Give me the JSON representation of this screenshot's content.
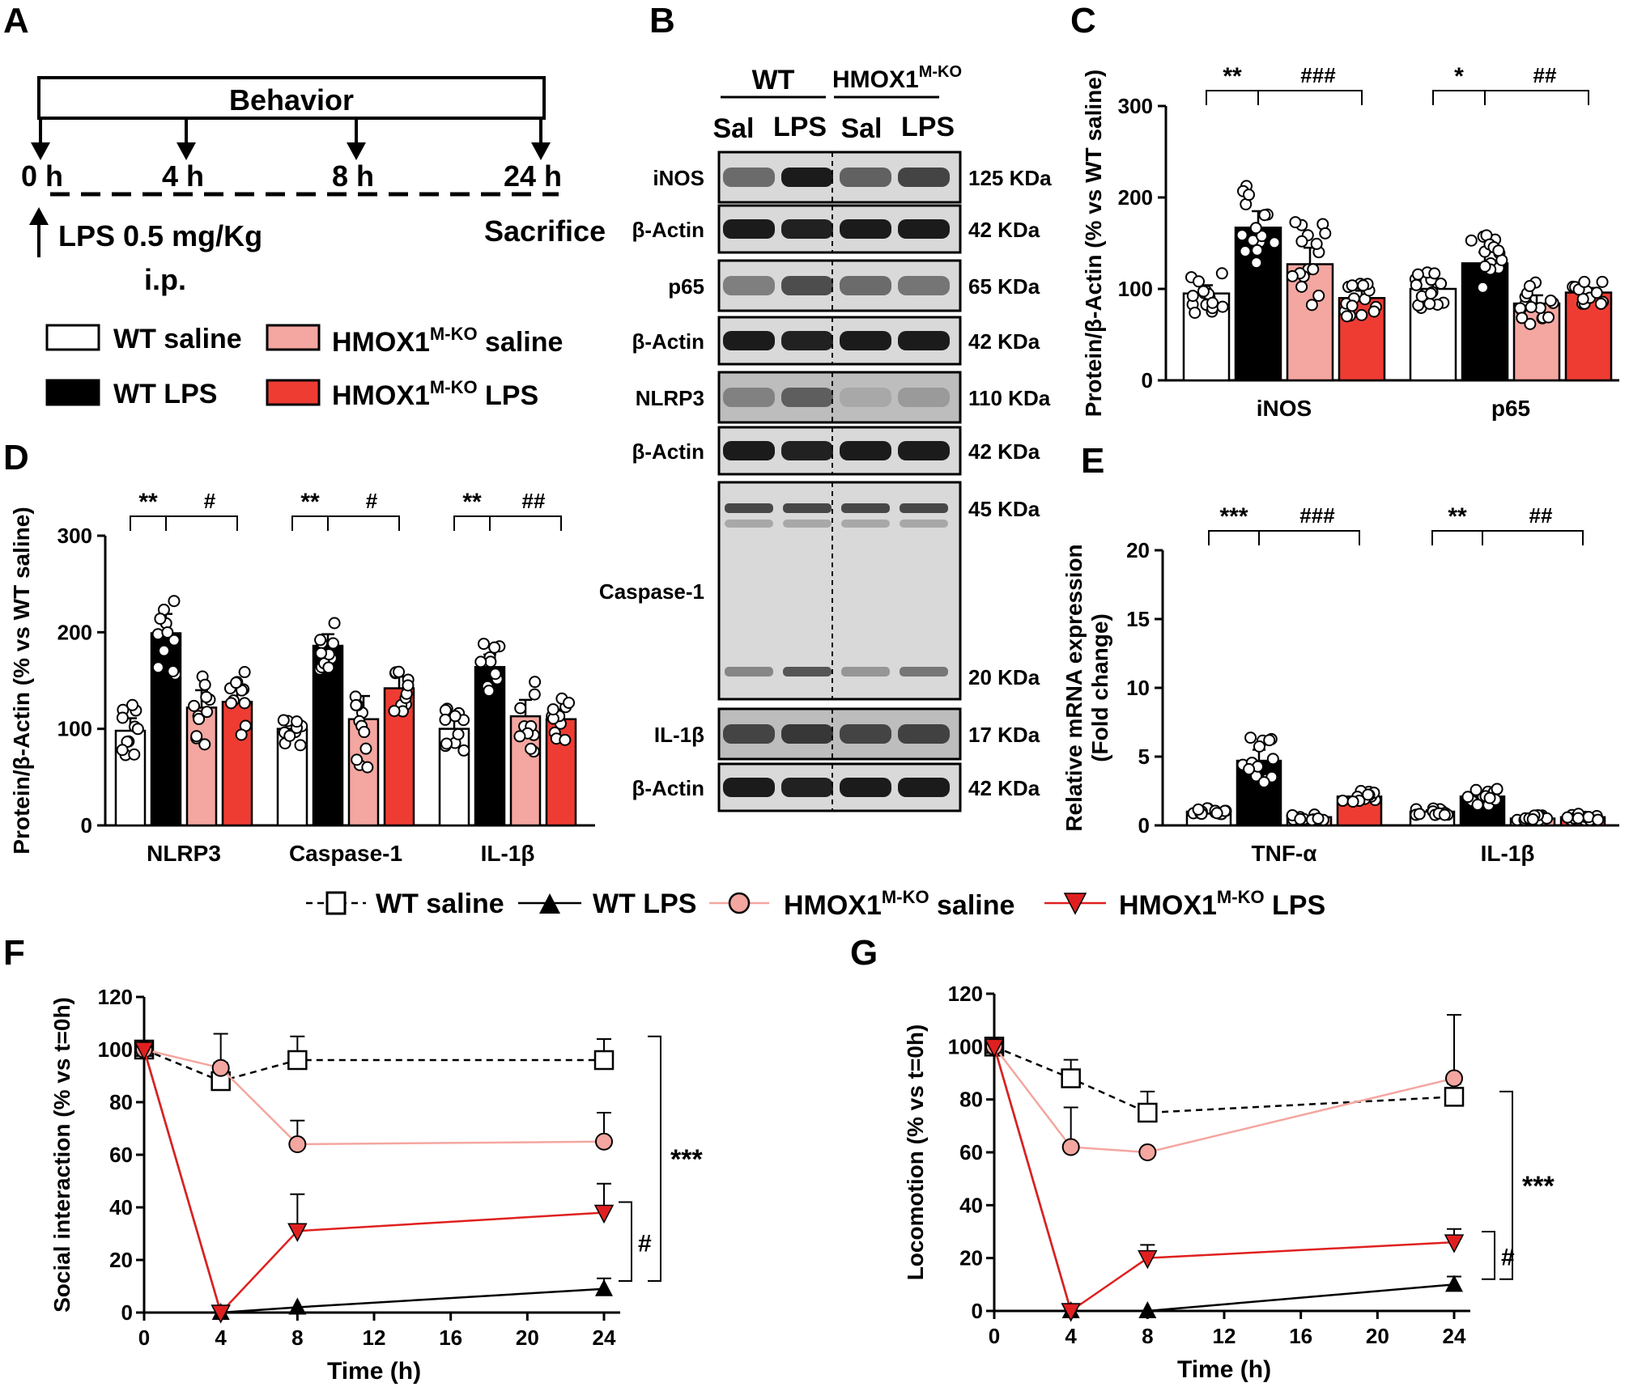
{
  "panels": {
    "A": "A",
    "B": "B",
    "C": "C",
    "D": "D",
    "E": "E",
    "F": "F",
    "G": "G"
  },
  "panel_a": {
    "behavior_label": "Behavior",
    "times": [
      "0 h",
      "4 h",
      "8 h",
      "24 h"
    ],
    "lps_label": "LPS 0.5 mg/Kg",
    "ip_label": "i.p.",
    "sacrifice_label": "Sacrifice"
  },
  "bar_legend": [
    {
      "label": "WT saline",
      "sup": "",
      "suffix": "",
      "fill": "#ffffff"
    },
    {
      "label": "HMOX1",
      "sup": "M-KO",
      "suffix": " saline",
      "fill": "#f4a6a0"
    },
    {
      "label": "WT LPS",
      "sup": "",
      "suffix": "",
      "fill": "#000000"
    },
    {
      "label": "HMOX1",
      "sup": "M-KO",
      "suffix": " LPS",
      "fill": "#ee3c33"
    }
  ],
  "line_legend": [
    {
      "label": "WT saline",
      "sup": "",
      "suffix": ""
    },
    {
      "label": "WT LPS",
      "sup": "",
      "suffix": ""
    },
    {
      "label": "HMOX1",
      "sup": "M-KO",
      "suffix": " saline"
    },
    {
      "label": "HMOX1",
      "sup": "M-KO",
      "suffix": " LPS"
    }
  ],
  "colors": {
    "wt_saline": "#ffffff",
    "wt_lps": "#000000",
    "ko_saline": "#f4a6a0",
    "ko_lps": "#ee3c33",
    "line_ko_saline": "#f4a6a0",
    "line_ko_lps": "#e02020"
  },
  "blot": {
    "group_wt": "WT",
    "group_ko": "HMOX1",
    "group_ko_sup": "M-KO",
    "lanes": [
      "Sal",
      "LPS",
      "Sal",
      "LPS"
    ],
    "bands": [
      {
        "protein": "iNOS",
        "size": "125 KDa"
      },
      {
        "protein": "β-Actin",
        "size": "42 KDa"
      },
      {
        "protein": "p65",
        "size": "65 KDa"
      },
      {
        "protein": "β-Actin",
        "size": "42 KDa"
      },
      {
        "protein": "NLRP3",
        "size": "110 KDa"
      },
      {
        "protein": "β-Actin",
        "size": "42 KDa"
      },
      {
        "protein": "Caspase-1",
        "size": "45 KDa",
        "size2": "20 KDa"
      },
      {
        "protein": "IL-1β",
        "size": "17 KDa"
      },
      {
        "protein": "β-Actin",
        "size": "42 KDa"
      }
    ]
  },
  "chart_data": [
    {
      "panel": "C",
      "type": "bar",
      "ylabel": "Protein/β-Actin (% vs WT saline)",
      "ylim": [
        0,
        300
      ],
      "yticks": [
        0,
        100,
        200,
        300
      ],
      "groups": [
        "iNOS",
        "p65"
      ],
      "series": [
        {
          "name": "WT saline",
          "values": [
            95,
            100
          ],
          "errors": [
            9,
            8
          ]
        },
        {
          "name": "WT LPS",
          "values": [
            167,
            128
          ],
          "errors": [
            18,
            12
          ]
        },
        {
          "name": "HMOX1 M-KO saline",
          "values": [
            127,
            84
          ],
          "errors": [
            18,
            9
          ]
        },
        {
          "name": "HMOX1 M-KO LPS",
          "values": [
            90,
            96
          ],
          "errors": [
            8,
            5
          ]
        }
      ],
      "significance": [
        {
          "group": "iNOS",
          "lps_effect": "**",
          "ko_effect": "###"
        },
        {
          "group": "p65",
          "lps_effect": "*",
          "ko_effect": "##"
        }
      ]
    },
    {
      "panel": "D",
      "type": "bar",
      "ylabel": "Protein/β-Actin (% vs WT saline)",
      "ylim": [
        0,
        300
      ],
      "yticks": [
        0,
        100,
        200,
        300
      ],
      "groups": [
        "NLRP3",
        "Caspase-1",
        "IL-1β"
      ],
      "series": [
        {
          "name": "WT saline",
          "values": [
            98,
            100,
            100
          ],
          "errors": [
            13,
            8,
            12
          ]
        },
        {
          "name": "WT LPS",
          "values": [
            199,
            186,
            164
          ],
          "errors": [
            20,
            12,
            13
          ]
        },
        {
          "name": "HMOX1 M-KO saline",
          "values": [
            122,
            110,
            113
          ],
          "errors": [
            18,
            24,
            17
          ]
        },
        {
          "name": "HMOX1 M-KO LPS",
          "values": [
            128,
            142,
            110
          ],
          "errors": [
            16,
            12,
            10
          ]
        }
      ],
      "significance": [
        {
          "group": "NLRP3",
          "lps_effect": "**",
          "ko_effect": "#"
        },
        {
          "group": "Caspase-1",
          "lps_effect": "**",
          "ko_effect": "#"
        },
        {
          "group": "IL-1β",
          "lps_effect": "**",
          "ko_effect": "##"
        }
      ]
    },
    {
      "panel": "E",
      "type": "bar",
      "ylabel_lines": [
        "Relative mRNA expression",
        "(Fold change)"
      ],
      "ylim": [
        0,
        20
      ],
      "yticks": [
        0,
        5,
        10,
        15,
        20
      ],
      "groups": [
        "TNF-α",
        "IL-1β"
      ],
      "series": [
        {
          "name": "WT saline",
          "values": [
            1.0,
            1.0
          ],
          "errors": [
            0.1,
            0.1
          ]
        },
        {
          "name": "WT LPS",
          "values": [
            4.7,
            2.1
          ],
          "errors": [
            0.8,
            0.3
          ]
        },
        {
          "name": "HMOX1 M-KO saline",
          "values": [
            0.6,
            0.5
          ],
          "errors": [
            0.1,
            0.1
          ]
        },
        {
          "name": "HMOX1 M-KO LPS",
          "values": [
            2.1,
            0.6
          ],
          "errors": [
            0.2,
            0.1
          ]
        }
      ],
      "significance": [
        {
          "group": "TNF-α",
          "lps_effect": "***",
          "ko_effect": "###"
        },
        {
          "group": "IL-1β",
          "lps_effect": "**",
          "ko_effect": "##"
        }
      ]
    },
    {
      "panel": "F",
      "type": "line",
      "xlabel": "Time (h)",
      "ylabel": "Social interaction (% vs t=0h)",
      "xlim": [
        0,
        24
      ],
      "ylim": [
        0,
        120
      ],
      "xticks": [
        0,
        4,
        8,
        12,
        16,
        20,
        24
      ],
      "yticks": [
        0,
        20,
        40,
        60,
        80,
        100,
        120
      ],
      "x": [
        0,
        4,
        8,
        24
      ],
      "series": [
        {
          "name": "WT saline",
          "values": [
            100,
            88,
            96,
            96
          ],
          "errors": [
            0,
            7,
            9,
            8
          ]
        },
        {
          "name": "WT LPS",
          "values": [
            100,
            0,
            2,
            9
          ],
          "errors": [
            0,
            0,
            0,
            4
          ]
        },
        {
          "name": "HMOX1 M-KO saline",
          "values": [
            100,
            93,
            64,
            65
          ],
          "errors": [
            0,
            13,
            9,
            11
          ]
        },
        {
          "name": "HMOX1 M-KO LPS",
          "values": [
            100,
            0,
            31,
            38
          ],
          "errors": [
            0,
            0,
            14,
            11
          ]
        }
      ],
      "significance": [
        "***",
        "#"
      ]
    },
    {
      "panel": "G",
      "type": "line",
      "xlabel": "Time (h)",
      "ylabel": "Locomotion (% vs t=0h)",
      "xlim": [
        0,
        24
      ],
      "ylim": [
        0,
        120
      ],
      "xticks": [
        0,
        4,
        8,
        12,
        16,
        20,
        24
      ],
      "yticks": [
        0,
        20,
        40,
        60,
        80,
        100,
        120
      ],
      "x": [
        0,
        4,
        8,
        24
      ],
      "series": [
        {
          "name": "WT saline",
          "values": [
            100,
            88,
            75,
            81
          ],
          "errors": [
            0,
            7,
            8,
            5
          ]
        },
        {
          "name": "WT LPS",
          "values": [
            100,
            0,
            0,
            10
          ],
          "errors": [
            0,
            0,
            0,
            3
          ]
        },
        {
          "name": "HMOX1 M-KO saline",
          "values": [
            100,
            62,
            60,
            88
          ],
          "errors": [
            0,
            15,
            0,
            24
          ]
        },
        {
          "name": "HMOX1 M-KO LPS",
          "values": [
            100,
            0,
            20,
            26
          ],
          "errors": [
            0,
            0,
            5,
            5
          ]
        }
      ],
      "significance": [
        "***",
        "#"
      ]
    }
  ]
}
